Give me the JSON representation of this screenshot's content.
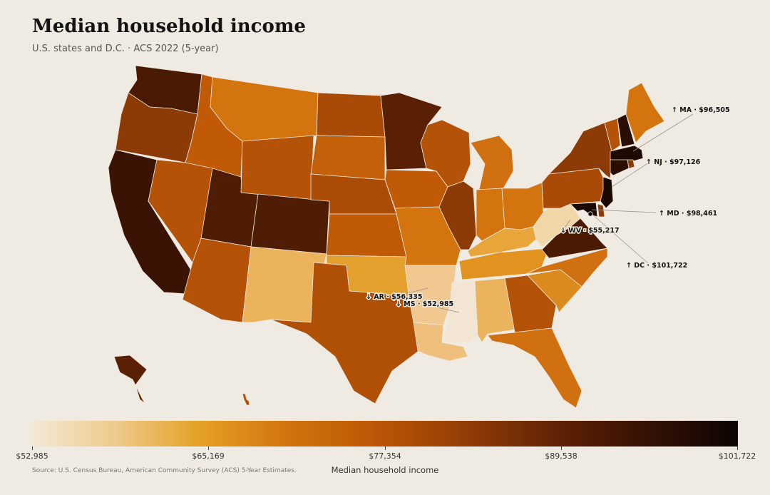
{
  "title": "Median household income",
  "subtitle": "U.S. states and D.C. · ACS 2022 (5-year)",
  "source": "Source: U.S. Census Bureau, American Community Survey (ACS) 5-Year Estimates.",
  "colorbar": {
    "title": "Median household income",
    "ticks": [
      "$52,985",
      "$65,169",
      "$77,354",
      "$89,538",
      "$101,722"
    ]
  },
  "callouts": {
    "MA": "↑ MA · $96,505",
    "NJ": "↑ NJ · $97,126",
    "MD": "↑ MD · $98,461",
    "WV": "↓ WV · $55,217",
    "DC": "↑ DC · $101,722",
    "AR": "↓ AR · $56,335",
    "MS": "↓ MS · $52,985"
  },
  "colors": {
    "WA": "#4a1a04",
    "OR": "#8c3a06",
    "CA": "#3a1305",
    "ID": "#c05a07",
    "NV": "#b45208",
    "UT": "#4f1d04",
    "AZ": "#b45208",
    "MT": "#d3740e",
    "WY": "#b45208",
    "CO": "#4f1d04",
    "NM": "#ebb45c",
    "ND": "#a94a06",
    "SD": "#c4600a",
    "NE": "#aa4b06",
    "KS": "#c05a07",
    "OK": "#e3a02c",
    "TX": "#b05007",
    "MN": "#5a2004",
    "IA": "#c05a07",
    "MO": "#d3740e",
    "AR": "#f0c890",
    "LA": "#efc07c",
    "WI": "#b45208",
    "IL": "#8c3a06",
    "MI": "#d07010",
    "IN": "#d3740e",
    "OH": "#d3740e",
    "KY": "#e8a63a",
    "TN": "#e1921f",
    "MS": "#f3e5d4",
    "AL": "#ebb45c",
    "GA": "#b45208",
    "FL": "#d07010",
    "SC": "#db8a1e",
    "NC": "#d07010",
    "VA": "#4a1a04",
    "WV": "#f1d6a8",
    "PA": "#a94a06",
    "NY": "#8c3a06",
    "ME": "#d3740e",
    "VT": "#b45208",
    "NH": "#2b0e03",
    "MA": "#1f0a02",
    "RI": "#8c3a06",
    "CT": "#2b0e03",
    "NJ": "#1a0802",
    "DE": "#8c3a06",
    "MD": "#1a0802",
    "AK": "#5a2004",
    "HI": "#b45208"
  }
}
